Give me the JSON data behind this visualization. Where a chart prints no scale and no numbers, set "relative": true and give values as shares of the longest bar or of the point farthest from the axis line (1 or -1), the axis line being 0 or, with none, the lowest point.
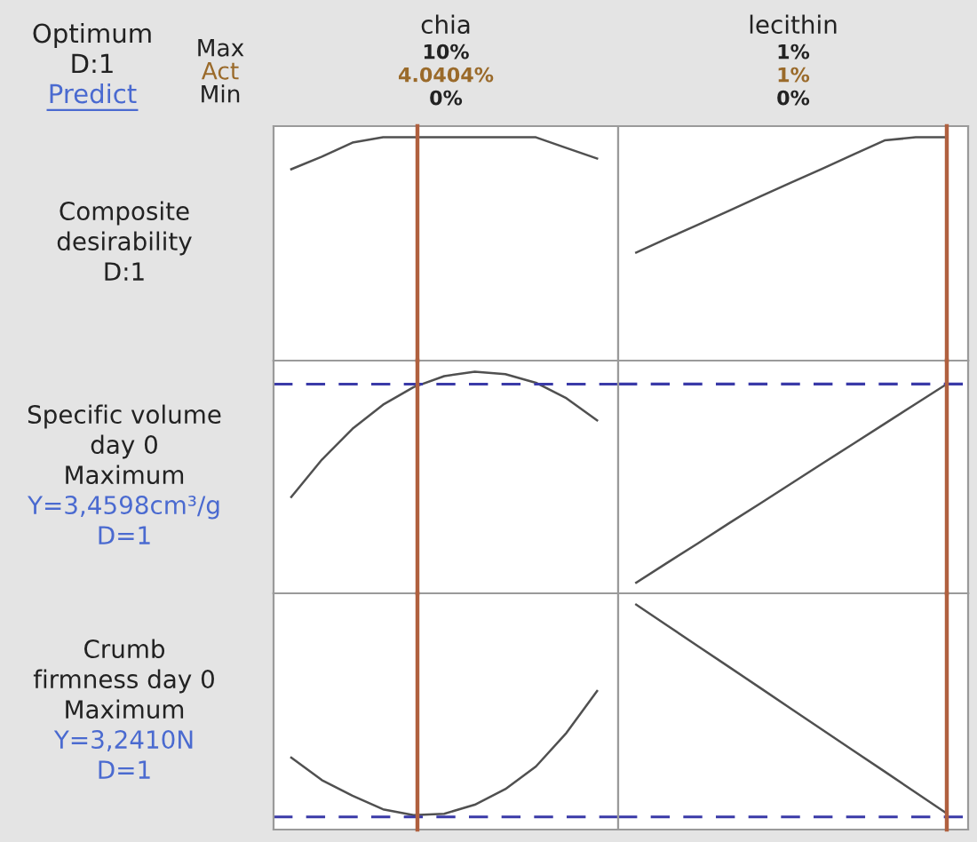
{
  "chart_data": [
    {
      "type": "other",
      "annotations": [
        "Optimum",
        "D:1",
        "Predict",
        "Max",
        "Act",
        "Min"
      ]
    },
    {
      "type": "line",
      "title": "chia",
      "annotations": [
        "10%",
        "4.0404%",
        "0%"
      ],
      "ylabel": "Composite\ndesirability\nD:1",
      "relative": true,
      "tick_labels": false,
      "categories": [
        null,
        null,
        null,
        null,
        null,
        null,
        null,
        null,
        null,
        null,
        null
      ],
      "series": [
        {
          "color": "#505050",
          "values": [
            0.857,
            0.913,
            0.976,
            1,
            1,
            1,
            1,
            1,
            1,
            0.952,
            0.905
          ]
        }
      ]
    },
    {
      "type": "line",
      "title": "lecithin",
      "annotations": [
        "1%",
        "1%",
        "0%"
      ],
      "relative": true,
      "tick_labels": false,
      "categories": [
        null,
        null,
        null,
        null,
        null,
        null,
        null,
        null,
        null,
        null,
        null
      ],
      "series": [
        {
          "color": "#505050",
          "values": [
            0.484,
            0.547,
            0.609,
            0.672,
            0.735,
            0.798,
            0.86,
            0.923,
            0.986,
            1,
            1
          ]
        }
      ]
    },
    {
      "type": "line",
      "ylabel": "Specific volume\nday 0\nMaximum",
      "annotations": [
        "Y=3,4598cm³/g",
        "D=1"
      ],
      "relative": true,
      "tick_labels": false,
      "categories": [
        null,
        null,
        null,
        null,
        null,
        null,
        null,
        null,
        null,
        null,
        null
      ],
      "series": [
        {
          "color": "#505050",
          "values": [
            0.435,
            0.603,
            0.742,
            0.851,
            0.93,
            0.98,
            1,
            0.989,
            0.95,
            0.88,
            0.78
          ]
        }
      ],
      "ref_lines": [
        {
          "axis": "y",
          "value": 0.944,
          "color": "#3a3aa8",
          "line_style": "dashed"
        }
      ]
    },
    {
      "type": "line",
      "relative": true,
      "tick_labels": false,
      "categories": [
        null,
        null,
        null,
        null,
        null,
        null,
        null,
        null,
        null,
        null,
        null
      ],
      "series": [
        {
          "color": "#505050",
          "values": [
            0.051,
            0.146,
            0.24,
            0.336,
            0.43,
            0.525,
            0.621,
            0.715,
            0.81,
            0.905,
            1
          ]
        }
      ],
      "ref_lines": [
        {
          "axis": "y",
          "value": 1,
          "color": "#3a3aa8",
          "line_style": "dashed"
        }
      ]
    },
    {
      "type": "line",
      "ylabel": "Crumb\nfirmness day 0\nMaximum",
      "annotations": [
        "Y=3,2410N",
        "D=1"
      ],
      "relative": true,
      "tick_labels": false,
      "categories": [
        null,
        null,
        null,
        null,
        null,
        null,
        null,
        null,
        null,
        null,
        null
      ],
      "series": [
        {
          "color": "#505050",
          "values": [
            0.519,
            0.357,
            0.244,
            0.146,
            0.104,
            0.114,
            0.179,
            0.292,
            0.455,
            0.698,
            1
          ]
        }
      ],
      "ref_lines": [
        {
          "axis": "y",
          "value": 0.091,
          "color": "#3a3aa8",
          "line_style": "dashed"
        }
      ]
    },
    {
      "type": "line",
      "relative": true,
      "tick_labels": false,
      "categories": [
        null,
        null,
        null,
        null,
        null,
        null,
        null,
        null,
        null,
        null,
        null
      ],
      "series": [
        {
          "color": "#505050",
          "values": [
            1,
            0.907,
            0.814,
            0.722,
            0.629,
            0.536,
            0.443,
            0.35,
            0.258,
            0.165,
            0.072
          ]
        }
      ],
      "ref_lines": [
        {
          "axis": "y",
          "value": 0.056,
          "color": "#3a3aa8",
          "line_style": "dashed"
        }
      ]
    }
  ]
}
